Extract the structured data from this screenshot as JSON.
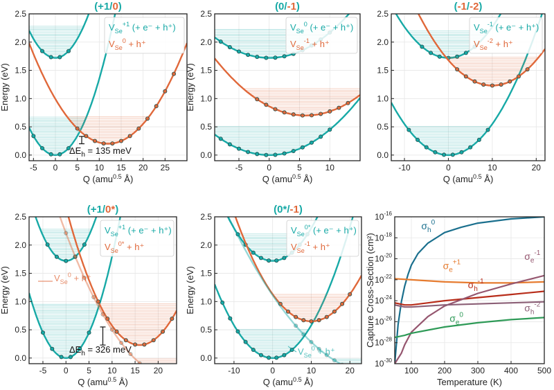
{
  "colors": {
    "teal": "#17a9a6",
    "orange": "#e0683a",
    "grid": "#e6e6e6",
    "marker_fill": "#4d8e8c",
    "sig_h0": "#1a6f8d",
    "sig_e1": "#e67b2f",
    "sig_h1": "#b82d1a",
    "sig_e_neg1": "#95566f",
    "sig_h_neg2": "#8b5f76",
    "sig_e0": "#2e9a57"
  },
  "chart_data": [
    {
      "type": "line",
      "id": "p1",
      "title": {
        "a": "(+1/",
        "b": "0",
        "c": ")"
      },
      "xlabel": "Q (amu^0.5 Å)",
      "ylabel": "Energy (eV)",
      "xlim": [
        -6,
        30
      ],
      "ylim": [
        -0.1,
        2.5
      ],
      "xticks": [
        -5,
        0,
        5,
        10,
        15,
        20,
        25
      ],
      "yticks": [
        0.0,
        0.5,
        1.0,
        1.5,
        2.0,
        2.5
      ],
      "curves": [
        {
          "color": "teal",
          "q0": 0,
          "e0": 0.0,
          "k": 0.0135,
          "fill": 0.68,
          "marker_from": -5,
          "marker_to": 4
        },
        {
          "color": "teal",
          "q0": 0,
          "e0": 1.72,
          "k": 0.0135,
          "fill": 2.3,
          "marker_from": -3,
          "marker_to": 3
        },
        {
          "color": "orange",
          "q0": 12,
          "e0": 0.2,
          "k": 0.0055,
          "fill": 0.68,
          "marker_from": 5,
          "marker_to": 28
        }
      ],
      "legend": [
        {
          "color": "teal",
          "text": "V_Se^{+1} (+ e⁻ + h⁺)"
        },
        {
          "color": "orange",
          "text": "V_Se^{0} + h⁺"
        }
      ],
      "annotation": {
        "text": "ΔE_h = 135 meV",
        "q": 6,
        "e_low": 0.2,
        "e_high": 0.33
      }
    },
    {
      "type": "line",
      "id": "p2",
      "title": {
        "a": "(0/",
        "b": "-1",
        "c": ")"
      },
      "xlabel": "Q (amu^0.5 Å)",
      "ylabel": "Energy (eV)",
      "xlim": [
        -9,
        15
      ],
      "ylim": [
        -0.1,
        2.5
      ],
      "xticks": [
        -5,
        0,
        5,
        10
      ],
      "yticks": [
        0.0,
        0.5,
        1.0,
        1.5,
        2.0,
        2.5
      ],
      "curves": [
        {
          "color": "teal",
          "q0": 0,
          "e0": 0.0,
          "k": 0.0045,
          "fill": 0.52,
          "marker_from": -8,
          "marker_to": 10
        },
        {
          "color": "teal",
          "q0": 0,
          "e0": 1.72,
          "k": 0.0045,
          "fill": 2.25,
          "marker_from": -8,
          "marker_to": 10
        },
        {
          "color": "orange",
          "q0": 6,
          "e0": 0.7,
          "k": 0.0045,
          "fill": 1.2,
          "marker_from": -2,
          "marker_to": 14
        }
      ],
      "legend": [
        {
          "color": "teal",
          "text": "V_Se^{0} (+ e⁻ + h⁺)"
        },
        {
          "color": "orange",
          "text": "V_Se^{-1} + h⁺"
        }
      ]
    },
    {
      "type": "line",
      "id": "p3",
      "title": {
        "a": "(",
        "b": "-1",
        "c": "/",
        "d": "-2",
        "e": ")"
      },
      "xlabel": "Q (amu^0.5 Å)",
      "ylabel": "",
      "xlim": [
        -13,
        22
      ],
      "ylim": [
        -0.1,
        2.5
      ],
      "xticks": [
        -10,
        0,
        10,
        20
      ],
      "yticks": [
        0.0,
        0.5,
        1.0,
        1.5,
        2.0,
        2.5
      ],
      "curves": [
        {
          "color": "teal",
          "q0": 0,
          "e0": 0.0,
          "k": 0.0055,
          "fill": 0.52,
          "marker_from": -9,
          "marker_to": 9
        },
        {
          "color": "teal",
          "q0": 0,
          "e0": 1.72,
          "k": 0.0055,
          "fill": 2.2,
          "marker_from": -6,
          "marker_to": 7
        },
        {
          "color": "orange",
          "q0": 10,
          "e0": 1.23,
          "k": 0.0045,
          "fill": 1.75,
          "marker_from": 2,
          "marker_to": 19
        }
      ],
      "legend": [
        {
          "color": "teal",
          "text": "V_Se^{-1} (+ e⁻ + h⁺)"
        },
        {
          "color": "orange",
          "text": "V_Se^{-2} + h⁺"
        }
      ]
    },
    {
      "type": "line",
      "id": "p4",
      "title": {
        "a": "(+1/",
        "b": "0*",
        "c": ")"
      },
      "xlabel": "Q (amu^0.5 Å)",
      "ylabel": "Energy (eV)",
      "xlim": [
        -8,
        24
      ],
      "ylim": [
        -0.1,
        2.5
      ],
      "xticks": [
        -5,
        0,
        5,
        10,
        15,
        20
      ],
      "yticks": [
        0.0,
        0.5,
        1.0,
        1.5,
        2.0,
        2.5
      ],
      "curves": [
        {
          "color": "teal",
          "q0": 0,
          "e0": 0.0,
          "k": 0.018,
          "fill": 0.98,
          "marker_from": -5,
          "marker_to": 5
        },
        {
          "color": "teal",
          "q0": 0,
          "e0": 1.72,
          "k": 0.018,
          "fill": 2.3,
          "marker_from": -4,
          "marker_to": 4
        },
        {
          "color": "orange",
          "q0": 16,
          "e0": 0.23,
          "k": 0.0095,
          "fill": 0.98,
          "marker_from": 7,
          "marker_to": 23
        },
        {
          "color": "orange",
          "q0": 24,
          "e0": -0.38,
          "k": 0.0045,
          "fill": 0,
          "faded": true,
          "marker_from": -6,
          "marker_to": 18
        }
      ],
      "legend": [
        {
          "color": "teal",
          "text": "V_Se^{+1} (+ e⁻ + h⁺)"
        },
        {
          "color": "orange",
          "text": "V_Se^{0*} + h⁺"
        }
      ],
      "label": {
        "text": "V_Se^{0} + h⁺"
      },
      "annotation": {
        "text": "ΔE_h = 326 meV",
        "q": 8,
        "e_low": 0.23,
        "e_high": 0.55
      }
    },
    {
      "type": "line",
      "id": "p5",
      "title": {
        "a": "(0*/",
        "b": "-1",
        "c": ")"
      },
      "xlabel": "Q (amu^0.5 Å)",
      "ylabel": "Energy (eV)",
      "xlim": [
        -15,
        23
      ],
      "ylim": [
        -0.1,
        2.5
      ],
      "xticks": [
        -10,
        0,
        10,
        20
      ],
      "yticks": [
        0.0,
        0.5,
        1.0,
        1.5,
        2.0,
        2.5
      ],
      "curves": [
        {
          "color": "teal",
          "q0": 0,
          "e0": 0.0,
          "k": 0.0058,
          "fill": 0.52,
          "marker_from": -13,
          "marker_to": 5
        },
        {
          "color": "teal",
          "q0": 0,
          "e0": 1.72,
          "k": 0.0058,
          "fill": 2.2,
          "marker_from": -9,
          "marker_to": 9
        },
        {
          "color": "orange",
          "q0": 10,
          "e0": 0.65,
          "k": 0.0048,
          "fill": 1.15,
          "marker_from": 2,
          "marker_to": 20
        },
        {
          "color": "teal",
          "q0": 28,
          "e0": -0.3,
          "k": 0.0018,
          "fill": 0,
          "faded": true,
          "marker_from": 6,
          "marker_to": 22
        }
      ],
      "legend": [
        {
          "color": "teal",
          "text": "V_Se^{0*} (+ e⁻ + h⁺)"
        },
        {
          "color": "orange",
          "text": "V_Se^{-1} + h⁺"
        }
      ],
      "label": {
        "text": "V_Se^{0} + h⁺"
      }
    },
    {
      "type": "line",
      "id": "p6",
      "title": "",
      "xlabel": "Temperature (K)",
      "ylabel": "Capture Cross-Section (cm²)",
      "xlim": [
        50,
        500
      ],
      "ylim": [
        -30,
        -16
      ],
      "yscale": "log10",
      "xticks": [
        100,
        200,
        300,
        400,
        500
      ],
      "yticks": [
        -30,
        -28,
        -26,
        -24,
        -22,
        -20,
        -18,
        -16
      ],
      "series": [
        {
          "name": "σ_h^0",
          "color": "sig_h0",
          "T": [
            50,
            60,
            70,
            80,
            90,
            100,
            120,
            150,
            200,
            250,
            300,
            400,
            500
          ],
          "log_sigma": [
            -30.0,
            -26.3,
            -24.1,
            -22.6,
            -21.5,
            -20.6,
            -19.5,
            -18.5,
            -17.5,
            -17.0,
            -16.6,
            -16.2,
            -16.0
          ]
        },
        {
          "name": "σ_e^+1",
          "color": "sig_e1",
          "T": [
            50,
            100,
            200,
            300,
            400,
            500
          ],
          "log_sigma": [
            -21.9,
            -22.0,
            -22.2,
            -22.3,
            -22.3,
            -22.2
          ]
        },
        {
          "name": "σ_h^-1",
          "color": "sig_h1",
          "T": [
            50,
            80,
            100,
            150,
            200,
            300,
            400,
            500
          ],
          "log_sigma": [
            -24.2,
            -24.4,
            -24.4,
            -24.2,
            -24.0,
            -23.7,
            -23.4,
            -23.1
          ]
        },
        {
          "name": "σ_e^-1",
          "color": "sig_e_neg1",
          "T": [
            50,
            70,
            80,
            100,
            150,
            200,
            300,
            400,
            500
          ],
          "log_sigma": [
            -30.0,
            -29.0,
            -28.2,
            -27.0,
            -25.5,
            -24.5,
            -23.3,
            -22.4,
            -21.6
          ]
        },
        {
          "name": "σ_h^-2",
          "color": "sig_h_neg2",
          "T": [
            50,
            80,
            100,
            150,
            200,
            300,
            400,
            500
          ],
          "log_sigma": [
            -24.4,
            -24.6,
            -24.6,
            -24.5,
            -24.4,
            -24.3,
            -24.2,
            -24.1
          ]
        },
        {
          "name": "σ_e^0",
          "color": "sig_e0",
          "T": [
            50,
            80,
            100,
            150,
            200,
            300,
            400,
            500
          ],
          "log_sigma": [
            -27.5,
            -27.3,
            -27.1,
            -26.8,
            -26.5,
            -26.1,
            -25.8,
            -25.6
          ]
        }
      ],
      "labels": [
        {
          "base": "σ",
          "sub": "h",
          "sup": "0",
          "color": "sig_h0",
          "T": 130,
          "log_sigma": -17.2
        },
        {
          "base": "σ",
          "sub": "e",
          "sup": "+1",
          "color": "sig_e1",
          "T": 195,
          "log_sigma": -21.0
        },
        {
          "base": "σ",
          "sub": "e",
          "sup": "-1",
          "color": "sig_e_neg1",
          "T": 440,
          "log_sigma": -20.1
        },
        {
          "base": "σ",
          "sub": "h",
          "sup": "-1",
          "color": "sig_h1",
          "T": 270,
          "log_sigma": -22.8
        },
        {
          "base": "σ",
          "sub": "h",
          "sup": "-2",
          "color": "sig_h_neg2",
          "T": 440,
          "log_sigma": -25.0
        },
        {
          "base": "σ",
          "sub": "e",
          "sup": "0",
          "color": "sig_e0",
          "T": 215,
          "log_sigma": -26.0
        }
      ]
    }
  ]
}
